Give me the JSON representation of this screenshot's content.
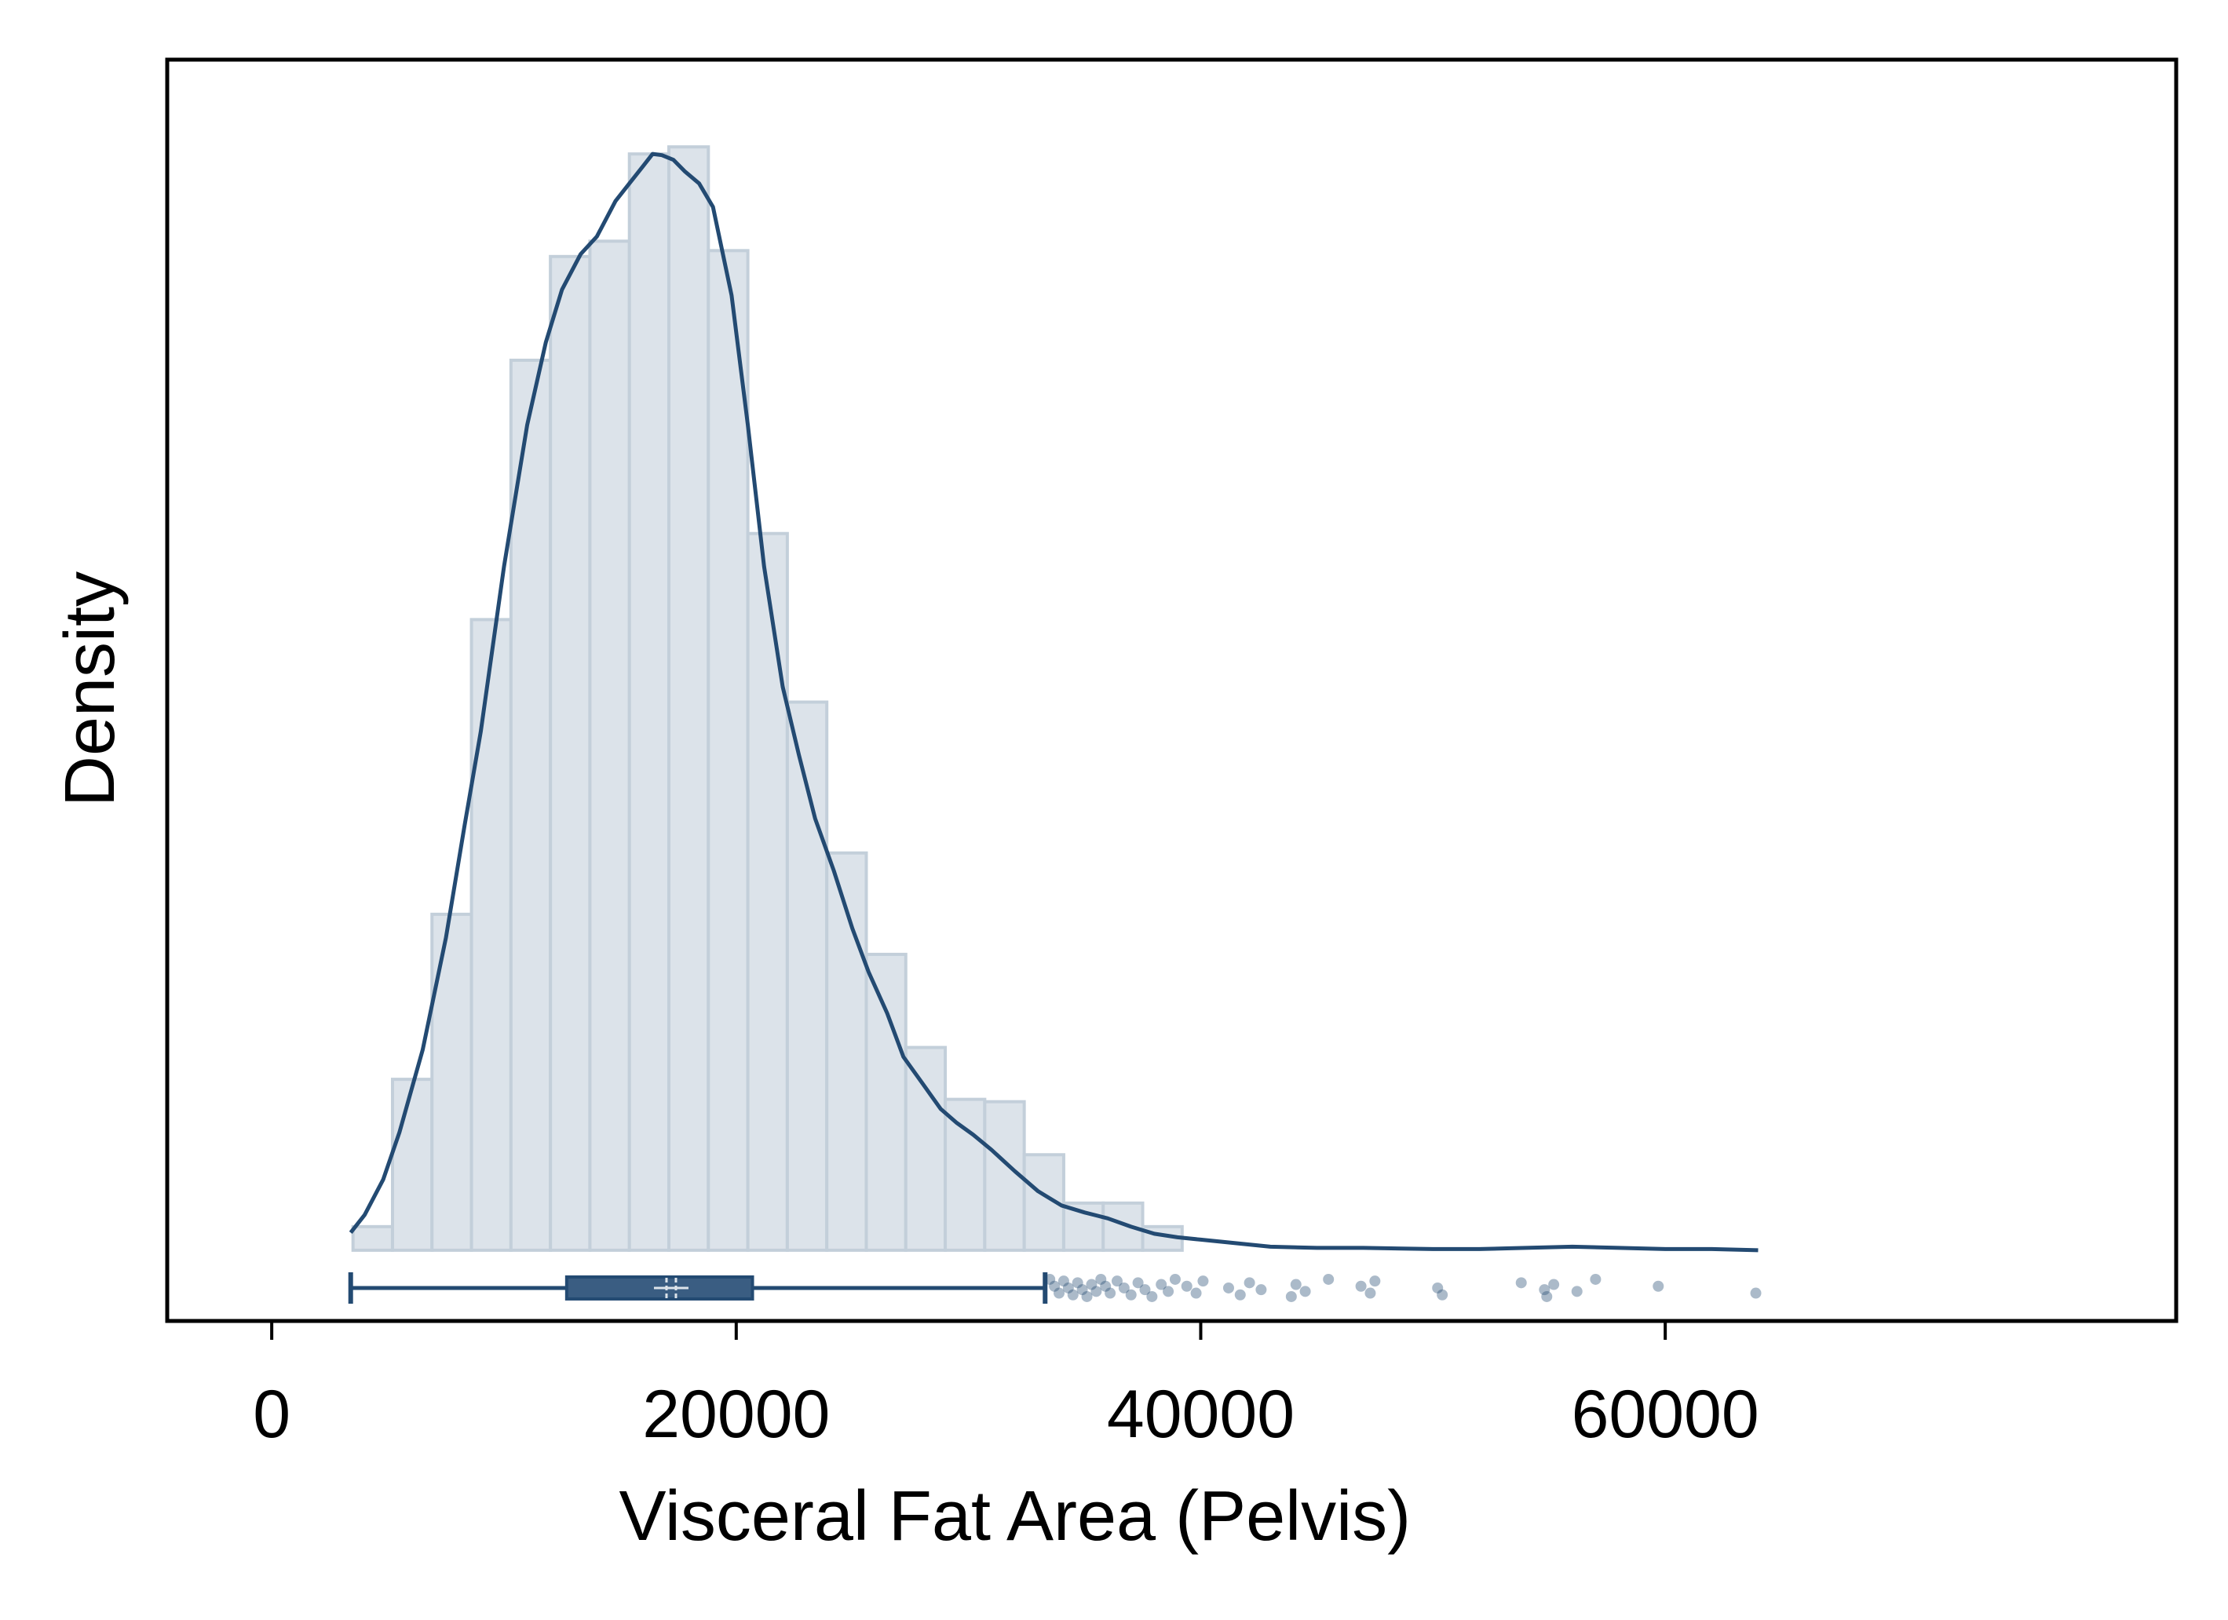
{
  "colors": {
    "background": "#ffffff",
    "plot_background": "#dce3ea",
    "bar_fill": "#dce3ea",
    "bar_stroke": "#c3cfda",
    "density_line": "#234a72",
    "box_fill": "#3a5d82",
    "box_stroke": "#234a72",
    "median_marker": "#dce3ea",
    "outlier": "#234a72",
    "frame": "#000000"
  },
  "chart_data": {
    "type": "histogram",
    "title": "",
    "xlabel": "Visceral Fat Area (Pelvis)",
    "ylabel": "Density",
    "xlim": [
      -4500,
      82000
    ],
    "ylim": [
      -60,
      1010
    ],
    "x_ticks": [
      0,
      20000,
      40000,
      60000
    ],
    "x_tick_labels": [
      "0",
      "20000",
      "40000",
      "60000"
    ],
    "y_ticks_shown": false,
    "grid": false,
    "legend": "none",
    "histogram": {
      "bin_width": 1700,
      "bins": [
        {
          "x0": 3500,
          "x1": 5200,
          "density": 20
        },
        {
          "x0": 5200,
          "x1": 6900,
          "density": 145
        },
        {
          "x0": 6900,
          "x1": 8600,
          "density": 285
        },
        {
          "x0": 8600,
          "x1": 10300,
          "density": 535
        },
        {
          "x0": 10300,
          "x1": 12000,
          "density": 755
        },
        {
          "x0": 12000,
          "x1": 13700,
          "density": 843
        },
        {
          "x0": 13700,
          "x1": 15400,
          "density": 856
        },
        {
          "x0": 15400,
          "x1": 17100,
          "density": 930
        },
        {
          "x0": 17100,
          "x1": 18800,
          "density": 936
        },
        {
          "x0": 18800,
          "x1": 20500,
          "density": 848
        },
        {
          "x0": 20500,
          "x1": 22200,
          "density": 608
        },
        {
          "x0": 22200,
          "x1": 23900,
          "density": 465
        },
        {
          "x0": 23900,
          "x1": 25600,
          "density": 337
        },
        {
          "x0": 25600,
          "x1": 27300,
          "density": 251
        },
        {
          "x0": 27300,
          "x1": 29000,
          "density": 172
        },
        {
          "x0": 29000,
          "x1": 30700,
          "density": 128
        },
        {
          "x0": 30700,
          "x1": 32400,
          "density": 126
        },
        {
          "x0": 32400,
          "x1": 34100,
          "density": 81
        },
        {
          "x0": 34100,
          "x1": 35800,
          "density": 40
        },
        {
          "x0": 35800,
          "x1": 37500,
          "density": 40
        },
        {
          "x0": 37500,
          "x1": 39200,
          "density": 20
        }
      ]
    },
    "density_curve": {
      "x": [
        3400,
        4000,
        4800,
        5500,
        6500,
        7500,
        8300,
        9000,
        10000,
        11000,
        11800,
        12500,
        13300,
        14000,
        14800,
        15400,
        16000,
        16400,
        16800,
        17300,
        17800,
        18400,
        19000,
        19800,
        20500,
        21200,
        22000,
        22700,
        23400,
        24200,
        25000,
        25700,
        26500,
        27200,
        28000,
        28800,
        29500,
        30200,
        31000,
        32000,
        33000,
        34000,
        35000,
        36000,
        37000,
        38000,
        39000,
        40000,
        41000,
        42000,
        43000,
        45000,
        47000,
        50000,
        52000,
        54000,
        56000,
        58000,
        60000,
        62000,
        64000
      ],
      "density": [
        15,
        30,
        60,
        100,
        170,
        265,
        360,
        440,
        580,
        700,
        770,
        815,
        845,
        860,
        890,
        905,
        920,
        930,
        929,
        925,
        915,
        905,
        885,
        810,
        700,
        580,
        478,
        420,
        366,
        322,
        273,
        236,
        201,
        164,
        142,
        120,
        108,
        98,
        85,
        67,
        50,
        38,
        32,
        27,
        20,
        14,
        11,
        9,
        7,
        5,
        3,
        2,
        2,
        1,
        1,
        2,
        3,
        2,
        1,
        1,
        0
      ]
    },
    "boxplot": {
      "whisker_low": 3400,
      "q1": 12700,
      "median": 17200,
      "q3": 20700,
      "whisker_high": 33300,
      "outliers": [
        33500,
        33700,
        33900,
        34100,
        34300,
        34500,
        34700,
        34900,
        35100,
        35300,
        35500,
        35700,
        35900,
        36100,
        36400,
        36700,
        37000,
        37300,
        37600,
        37900,
        38300,
        38600,
        38900,
        39400,
        39800,
        40100,
        41200,
        41700,
        42100,
        42600,
        43900,
        44100,
        44500,
        45500,
        46900,
        47300,
        47500,
        50200,
        50400,
        53800,
        54800,
        54900,
        55200,
        56200,
        57000,
        59700,
        63900
      ]
    }
  }
}
